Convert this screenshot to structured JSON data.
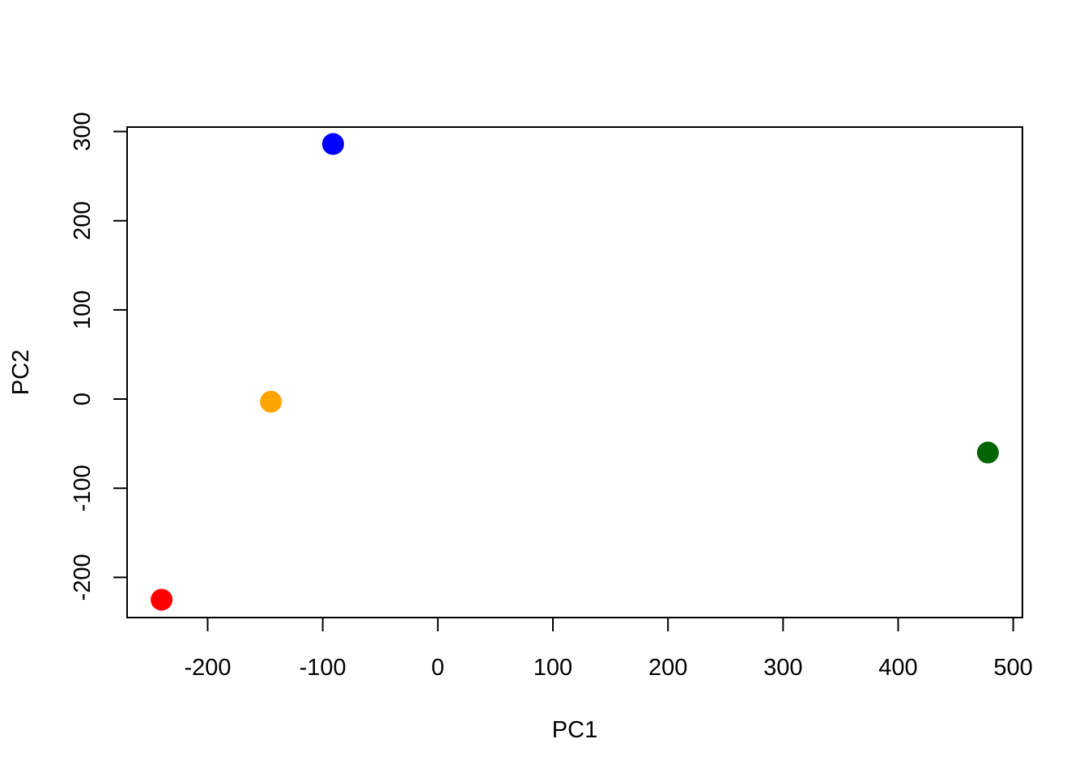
{
  "chart_data": {
    "type": "scatter",
    "title": "",
    "xlabel": "PC1",
    "ylabel": "PC2",
    "xlim": [
      -270,
      508
    ],
    "ylim": [
      -245,
      305
    ],
    "grid": false,
    "x_ticks": [
      -200,
      -100,
      0,
      100,
      200,
      300,
      400,
      500
    ],
    "y_ticks": [
      -200,
      -100,
      0,
      100,
      200,
      300
    ],
    "x_tick_labels": [
      "-200",
      "-100",
      "0",
      "100",
      "200",
      "300",
      "400",
      "500"
    ],
    "y_tick_labels": [
      "-200",
      "-100",
      "0",
      "100",
      "200",
      "300"
    ],
    "points": [
      {
        "x": -91,
        "y": 286,
        "color": "#0000ff"
      },
      {
        "x": -145,
        "y": -3,
        "color": "#ffa500"
      },
      {
        "x": 478,
        "y": -60,
        "color": "#006400"
      },
      {
        "x": -240,
        "y": -225,
        "color": "#ff0000"
      }
    ]
  }
}
